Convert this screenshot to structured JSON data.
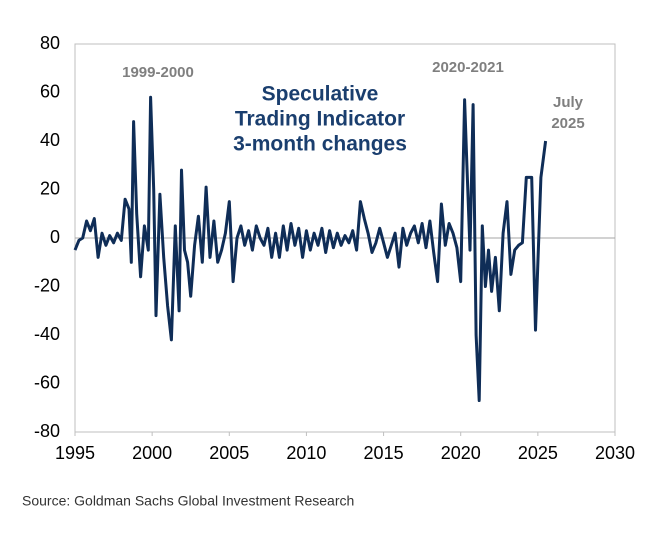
{
  "chart_data": {
    "type": "line",
    "title_lines": [
      "Speculative",
      "Trading Indicator",
      "3-month changes"
    ],
    "annotations": [
      "1999-2000",
      "2020-2021",
      "July",
      "2025"
    ],
    "source": "Source: Goldman Sachs Global Investment Research",
    "xlim": [
      1995,
      2030
    ],
    "xticks": [
      1995,
      2000,
      2005,
      2010,
      2015,
      2020,
      2025,
      2030
    ],
    "ylim": [
      -80,
      80
    ],
    "yticks": [
      -80,
      -60,
      -40,
      -20,
      0,
      20,
      40,
      60,
      80
    ],
    "zero_line": true,
    "series": [
      {
        "color": "#0f2d57",
        "x": [
          1995,
          1995.25,
          1995.5,
          1995.75,
          1996,
          1996.25,
          1996.5,
          1996.75,
          1997,
          1997.25,
          1997.5,
          1997.75,
          1998,
          1998.25,
          1998.5,
          1998.65,
          1998.8,
          1999,
          1999.25,
          1999.5,
          1999.75,
          1999.9,
          2000.1,
          2000.25,
          2000.5,
          2000.75,
          2001,
          2001.25,
          2001.5,
          2001.75,
          2001.9,
          2002.1,
          2002.3,
          2002.5,
          2002.75,
          2003,
          2003.25,
          2003.5,
          2003.75,
          2004,
          2004.25,
          2004.5,
          2004.75,
          2005,
          2005.25,
          2005.5,
          2005.75,
          2006,
          2006.25,
          2006.5,
          2006.75,
          2007,
          2007.25,
          2007.5,
          2007.75,
          2008,
          2008.25,
          2008.5,
          2008.75,
          2009,
          2009.25,
          2009.5,
          2009.75,
          2010,
          2010.25,
          2010.5,
          2010.75,
          2011,
          2011.25,
          2011.5,
          2011.75,
          2012,
          2012.25,
          2012.5,
          2012.75,
          2013,
          2013.25,
          2013.5,
          2013.75,
          2014,
          2014.25,
          2014.5,
          2014.75,
          2015,
          2015.25,
          2015.5,
          2015.75,
          2016,
          2016.25,
          2016.5,
          2016.75,
          2017,
          2017.25,
          2017.5,
          2017.75,
          2018,
          2018.25,
          2018.5,
          2018.75,
          2019,
          2019.25,
          2019.5,
          2019.75,
          2020,
          2020.25,
          2020.4,
          2020.6,
          2020.8,
          2021,
          2021.2,
          2021.4,
          2021.6,
          2021.8,
          2022,
          2022.25,
          2022.5,
          2022.75,
          2023,
          2023.25,
          2023.5,
          2023.75,
          2024,
          2024.25,
          2024.6,
          2024.85,
          2025.2,
          2025.5
        ],
        "values": [
          -5,
          -1,
          0,
          7,
          3,
          8,
          -8,
          2,
          -3,
          1,
          -2,
          2,
          -1,
          16,
          12,
          -10,
          48,
          10,
          -16,
          5,
          -5,
          58,
          20,
          -32,
          18,
          -8,
          -28,
          -42,
          5,
          -30,
          28,
          -5,
          -10,
          -24,
          -3,
          9,
          -10,
          21,
          -8,
          7,
          -10,
          -5,
          2,
          15,
          -18,
          0,
          5,
          -3,
          3,
          -5,
          5,
          0,
          -3,
          4,
          -8,
          2,
          -8,
          5,
          -5,
          6,
          -3,
          4,
          -8,
          3,
          -5,
          2,
          -3,
          4,
          -6,
          3,
          -4,
          2,
          -3,
          1,
          -2,
          3,
          -5,
          15,
          8,
          2,
          -6,
          -2,
          4,
          -2,
          -8,
          -3,
          2,
          -12,
          4,
          -3,
          2,
          5,
          -2,
          6,
          -4,
          7,
          -6,
          -18,
          14,
          -3,
          6,
          2,
          -4,
          -18,
          57,
          30,
          -5,
          55,
          -40,
          -67,
          5,
          -20,
          -5,
          -22,
          -8,
          -30,
          2,
          15,
          -15,
          -5,
          -3,
          -2,
          25,
          25,
          -38,
          25,
          40
        ]
      }
    ]
  }
}
